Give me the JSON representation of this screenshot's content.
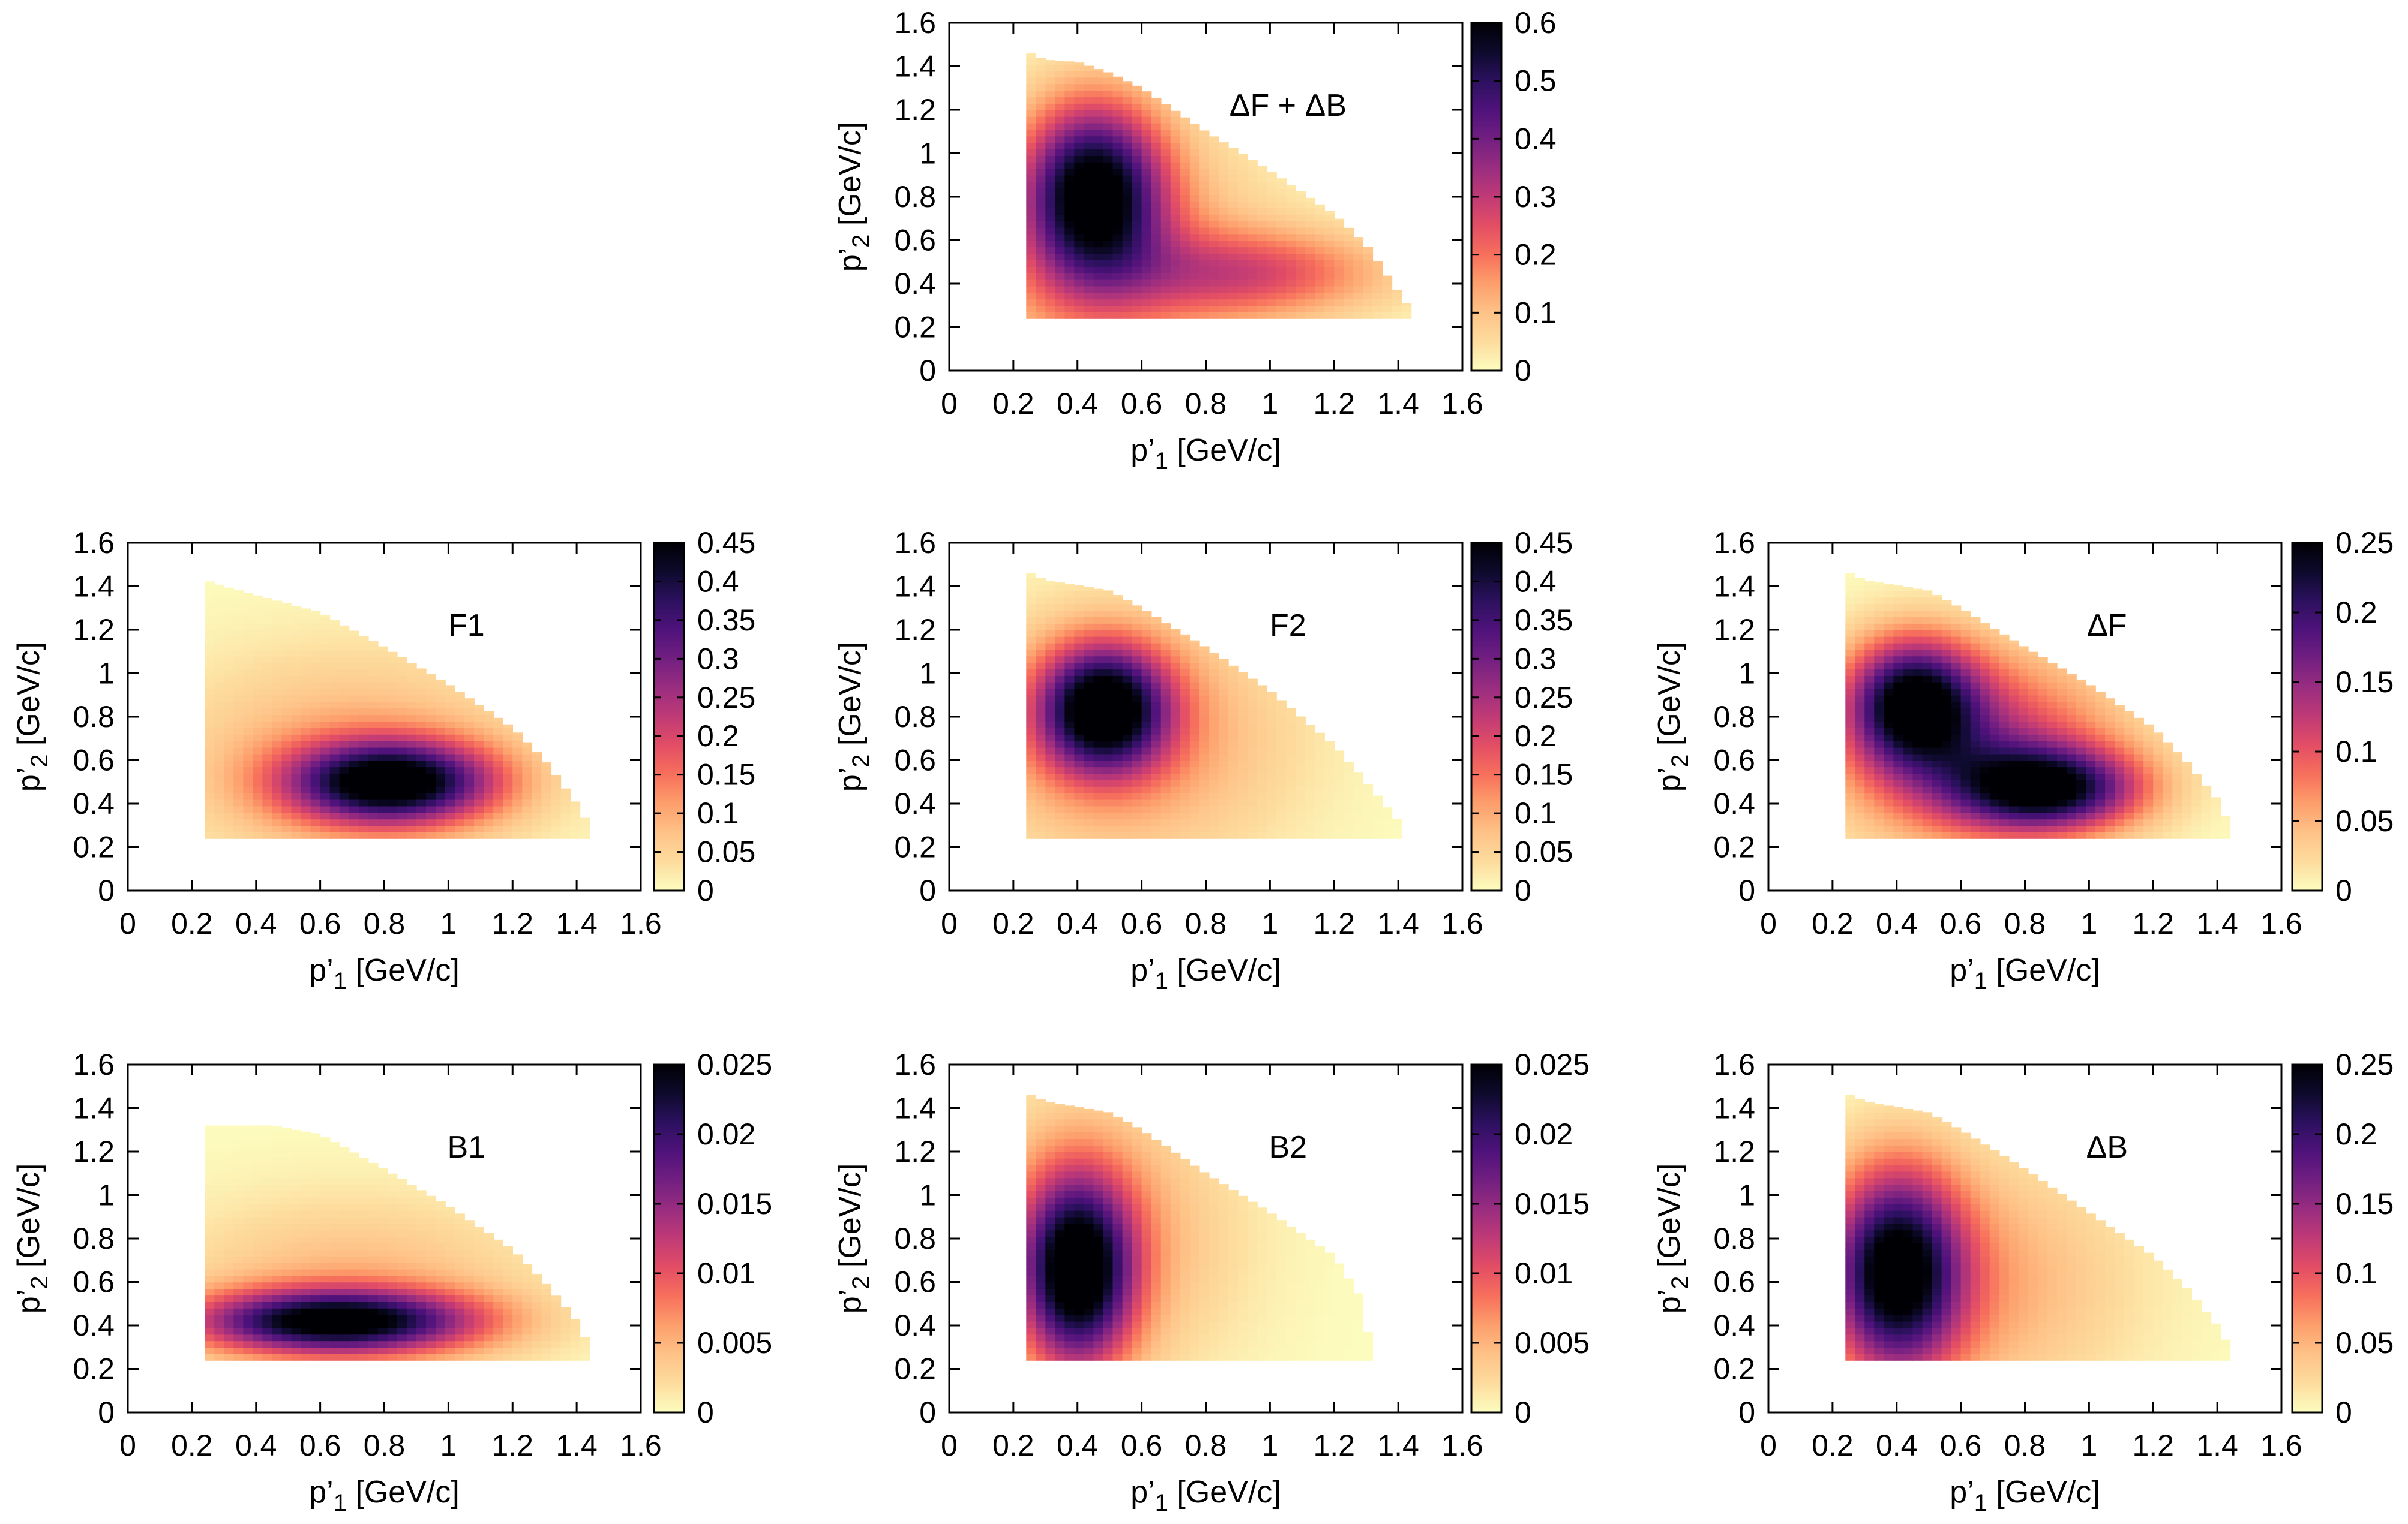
{
  "figure": {
    "description": "Seven heatmaps of momentum distributions",
    "colormap": [
      "#fcfdbf",
      "#fddc9e",
      "#fec287",
      "#fd9f6c",
      "#f7705c",
      "#e34e65",
      "#c03a76",
      "#9a2d80",
      "#721f81",
      "#4f127b",
      "#2c115f",
      "#0d0a2c",
      "#000004"
    ]
  },
  "chart_data": [
    {
      "id": "dFdB",
      "type": "heatmap",
      "title": "ΔF + ΔB",
      "xlabel": "p’",
      "xlabel_sub": "1",
      "xlabel_unit": " [GeV/c]",
      "ylabel": "p’",
      "ylabel_sub": "2",
      "ylabel_unit": " [GeV/c]",
      "xlim": [
        0,
        1.6
      ],
      "ylim": [
        0,
        1.6
      ],
      "xticks": [
        "0",
        "0.2",
        "0.4",
        "0.6",
        "0.8",
        "1",
        "1.2",
        "1.4",
        "1.6"
      ],
      "yticks": [
        "0",
        "0.2",
        "0.4",
        "0.6",
        "0.8",
        "1",
        "1.2",
        "1.4",
        "1.6"
      ],
      "zlim": [
        0,
        0.6
      ],
      "cbticks": [
        "0",
        "0.1",
        "0.2",
        "0.3",
        "0.4",
        "0.5",
        "0.6"
      ],
      "region": {
        "pmin": 0.24,
        "edge": [
          [
            0.24,
            1.47
          ],
          [
            0.3,
            1.43
          ],
          [
            0.4,
            1.42
          ],
          [
            0.5,
            1.37
          ],
          [
            0.6,
            1.3
          ],
          [
            0.8,
            1.1
          ],
          [
            1.0,
            0.92
          ],
          [
            1.2,
            0.72
          ],
          [
            1.3,
            0.58
          ],
          [
            1.4,
            0.36
          ],
          [
            1.45,
            0.26
          ]
        ]
      },
      "peaks": [
        {
          "x": 0.45,
          "y": 0.82,
          "amp": 0.58,
          "sx": 0.15,
          "sy": 0.28
        },
        {
          "x": 0.95,
          "y": 0.45,
          "amp": 0.22,
          "sx": 0.3,
          "sy": 0.14
        },
        {
          "x": 0.5,
          "y": 0.5,
          "amp": 0.15,
          "sx": 0.35,
          "sy": 0.45
        }
      ]
    },
    {
      "id": "F1",
      "type": "heatmap",
      "title": "F1",
      "xlabel": "p’",
      "xlabel_sub": "1",
      "xlabel_unit": " [GeV/c]",
      "ylabel": "p’",
      "ylabel_sub": "2",
      "ylabel_unit": " [GeV/c]",
      "xlim": [
        0,
        1.6
      ],
      "ylim": [
        0,
        1.6
      ],
      "xticks": [
        "0",
        "0.2",
        "0.4",
        "0.6",
        "0.8",
        "1",
        "1.2",
        "1.4",
        "1.6"
      ],
      "yticks": [
        "0",
        "0.2",
        "0.4",
        "0.6",
        "0.8",
        "1",
        "1.2",
        "1.4",
        "1.6"
      ],
      "zlim": [
        0,
        0.45
      ],
      "cbticks": [
        "0",
        "0.05",
        "0.1",
        "0.15",
        "0.2",
        "0.25",
        "0.3",
        "0.35",
        "0.4",
        "0.45"
      ],
      "region": {
        "pmin": 0.24,
        "edge": [
          [
            0.24,
            1.43
          ],
          [
            0.3,
            1.4
          ],
          [
            0.5,
            1.32
          ],
          [
            0.6,
            1.28
          ],
          [
            0.8,
            1.12
          ],
          [
            1.0,
            0.95
          ],
          [
            1.2,
            0.75
          ],
          [
            1.3,
            0.6
          ],
          [
            1.4,
            0.4
          ],
          [
            1.45,
            0.27
          ]
        ]
      },
      "peaks": [
        {
          "x": 0.82,
          "y": 0.5,
          "amp": 0.45,
          "sx": 0.22,
          "sy": 0.13
        },
        {
          "x": 0.7,
          "y": 0.6,
          "amp": 0.1,
          "sx": 0.4,
          "sy": 0.35
        }
      ]
    },
    {
      "id": "F2",
      "type": "heatmap",
      "title": "F2",
      "xlabel": "p’",
      "xlabel_sub": "1",
      "xlabel_unit": " [GeV/c]",
      "ylabel": "p’",
      "ylabel_sub": "2",
      "ylabel_unit": " [GeV/c]",
      "xlim": [
        0,
        1.6
      ],
      "ylim": [
        0,
        1.6
      ],
      "xticks": [
        "0",
        "0.2",
        "0.4",
        "0.6",
        "0.8",
        "1",
        "1.2",
        "1.4",
        "1.6"
      ],
      "yticks": [
        "0",
        "0.2",
        "0.4",
        "0.6",
        "0.8",
        "1",
        "1.2",
        "1.4",
        "1.6"
      ],
      "zlim": [
        0,
        0.45
      ],
      "cbticks": [
        "0",
        "0.05",
        "0.1",
        "0.15",
        "0.2",
        "0.25",
        "0.3",
        "0.35",
        "0.4",
        "0.45"
      ],
      "region": {
        "pmin": 0.24,
        "edge": [
          [
            0.24,
            1.47
          ],
          [
            0.3,
            1.43
          ],
          [
            0.5,
            1.38
          ],
          [
            0.6,
            1.3
          ],
          [
            0.8,
            1.12
          ],
          [
            1.0,
            0.92
          ],
          [
            1.2,
            0.67
          ],
          [
            1.3,
            0.5
          ],
          [
            1.4,
            0.32
          ],
          [
            1.42,
            0.26
          ]
        ]
      },
      "peaks": [
        {
          "x": 0.48,
          "y": 0.84,
          "amp": 0.45,
          "sx": 0.14,
          "sy": 0.2
        },
        {
          "x": 0.55,
          "y": 0.7,
          "amp": 0.12,
          "sx": 0.35,
          "sy": 0.4
        }
      ]
    },
    {
      "id": "dF",
      "type": "heatmap",
      "title": "ΔF",
      "xlabel": "p’",
      "xlabel_sub": "1",
      "xlabel_unit": " [GeV/c]",
      "ylabel": "p’",
      "ylabel_sub": "2",
      "ylabel_unit": " [GeV/c]",
      "xlim": [
        0,
        1.6
      ],
      "ylim": [
        0,
        1.6
      ],
      "xticks": [
        "0",
        "0.2",
        "0.4",
        "0.6",
        "0.8",
        "1",
        "1.2",
        "1.4",
        "1.6"
      ],
      "yticks": [
        "0",
        "0.2",
        "0.4",
        "0.6",
        "0.8",
        "1",
        "1.2",
        "1.4",
        "1.6"
      ],
      "zlim": [
        0,
        0.25
      ],
      "cbticks": [
        "0",
        "0.05",
        "0.1",
        "0.15",
        "0.2",
        "0.25"
      ],
      "region": {
        "pmin": 0.24,
        "edge": [
          [
            0.24,
            1.47
          ],
          [
            0.3,
            1.43
          ],
          [
            0.5,
            1.38
          ],
          [
            0.6,
            1.3
          ],
          [
            0.8,
            1.12
          ],
          [
            1.0,
            0.95
          ],
          [
            1.2,
            0.75
          ],
          [
            1.3,
            0.6
          ],
          [
            1.4,
            0.42
          ],
          [
            1.45,
            0.27
          ]
        ]
      },
      "peaks": [
        {
          "x": 0.45,
          "y": 0.87,
          "amp": 0.22,
          "sx": 0.14,
          "sy": 0.2
        },
        {
          "x": 0.87,
          "y": 0.47,
          "amp": 0.21,
          "sx": 0.2,
          "sy": 0.13
        },
        {
          "x": 0.65,
          "y": 0.65,
          "amp": 0.13,
          "sx": 0.3,
          "sy": 0.3
        }
      ]
    },
    {
      "id": "B1",
      "type": "heatmap",
      "title": "B1",
      "xlabel": "p’",
      "xlabel_sub": "1",
      "xlabel_unit": " [GeV/c]",
      "ylabel": "p’",
      "ylabel_sub": "2",
      "ylabel_unit": " [GeV/c]",
      "xlim": [
        0,
        1.6
      ],
      "ylim": [
        0,
        1.6
      ],
      "xticks": [
        "0",
        "0.2",
        "0.4",
        "0.6",
        "0.8",
        "1",
        "1.2",
        "1.4",
        "1.6"
      ],
      "yticks": [
        "0",
        "0.2",
        "0.4",
        "0.6",
        "0.8",
        "1",
        "1.2",
        "1.4",
        "1.6"
      ],
      "zlim": [
        0,
        0.025
      ],
      "cbticks": [
        "0",
        "0.005",
        "0.01",
        "0.015",
        "0.02",
        "0.025"
      ],
      "region": {
        "pmin": 0.24,
        "edge": [
          [
            0.24,
            1.32
          ],
          [
            0.45,
            1.32
          ],
          [
            0.6,
            1.28
          ],
          [
            0.8,
            1.12
          ],
          [
            1.0,
            0.95
          ],
          [
            1.2,
            0.75
          ],
          [
            1.3,
            0.6
          ],
          [
            1.4,
            0.42
          ],
          [
            1.45,
            0.27
          ]
        ]
      },
      "peaks": [
        {
          "x": 0.65,
          "y": 0.42,
          "amp": 0.024,
          "sx": 0.3,
          "sy": 0.1
        },
        {
          "x": 0.7,
          "y": 0.55,
          "amp": 0.005,
          "sx": 0.4,
          "sy": 0.3
        }
      ]
    },
    {
      "id": "B2",
      "type": "heatmap",
      "title": "B2",
      "xlabel": "p’",
      "xlabel_sub": "1",
      "xlabel_unit": " [GeV/c]",
      "ylabel": "p’",
      "ylabel_sub": "2",
      "ylabel_unit": " [GeV/c]",
      "xlim": [
        0,
        1.6
      ],
      "ylim": [
        0,
        1.6
      ],
      "xticks": [
        "0",
        "0.2",
        "0.4",
        "0.6",
        "0.8",
        "1",
        "1.2",
        "1.4",
        "1.6"
      ],
      "yticks": [
        "0",
        "0.2",
        "0.4",
        "0.6",
        "0.8",
        "1",
        "1.2",
        "1.4",
        "1.6"
      ],
      "zlim": [
        0,
        0.025
      ],
      "cbticks": [
        "0",
        "0.005",
        "0.01",
        "0.015",
        "0.02",
        "0.025"
      ],
      "region": {
        "pmin": 0.24,
        "edge": [
          [
            0.24,
            1.47
          ],
          [
            0.3,
            1.43
          ],
          [
            0.5,
            1.38
          ],
          [
            0.6,
            1.3
          ],
          [
            0.8,
            1.1
          ],
          [
            1.0,
            0.92
          ],
          [
            1.2,
            0.72
          ],
          [
            1.3,
            0.49
          ],
          [
            1.31,
            0.25
          ]
        ]
      },
      "peaks": [
        {
          "x": 0.4,
          "y": 0.65,
          "amp": 0.025,
          "sx": 0.12,
          "sy": 0.3
        },
        {
          "x": 0.45,
          "y": 0.8,
          "amp": 0.006,
          "sx": 0.3,
          "sy": 0.45
        }
      ]
    },
    {
      "id": "dB",
      "type": "heatmap",
      "title": "ΔB",
      "xlabel": "p’",
      "xlabel_sub": "1",
      "xlabel_unit": " [GeV/c]",
      "ylabel": "p’",
      "ylabel_sub": "2",
      "ylabel_unit": " [GeV/c]",
      "xlim": [
        0,
        1.6
      ],
      "ylim": [
        0,
        1.6
      ],
      "xticks": [
        "0",
        "0.2",
        "0.4",
        "0.6",
        "0.8",
        "1",
        "1.2",
        "1.4",
        "1.6"
      ],
      "yticks": [
        "0",
        "0.2",
        "0.4",
        "0.6",
        "0.8",
        "1",
        "1.2",
        "1.4",
        "1.6"
      ],
      "zlim": [
        0,
        0.25
      ],
      "cbticks": [
        "0",
        "0.05",
        "0.1",
        "0.15",
        "0.2",
        "0.25"
      ],
      "region": {
        "pmin": 0.24,
        "edge": [
          [
            0.24,
            1.47
          ],
          [
            0.3,
            1.43
          ],
          [
            0.5,
            1.38
          ],
          [
            0.6,
            1.3
          ],
          [
            0.8,
            1.12
          ],
          [
            1.0,
            0.92
          ],
          [
            1.2,
            0.72
          ],
          [
            1.3,
            0.58
          ],
          [
            1.4,
            0.4
          ],
          [
            1.45,
            0.27
          ]
        ]
      },
      "peaks": [
        {
          "x": 0.4,
          "y": 0.65,
          "amp": 0.24,
          "sx": 0.14,
          "sy": 0.32
        },
        {
          "x": 0.6,
          "y": 0.6,
          "amp": 0.06,
          "sx": 0.35,
          "sy": 0.4
        }
      ]
    }
  ]
}
